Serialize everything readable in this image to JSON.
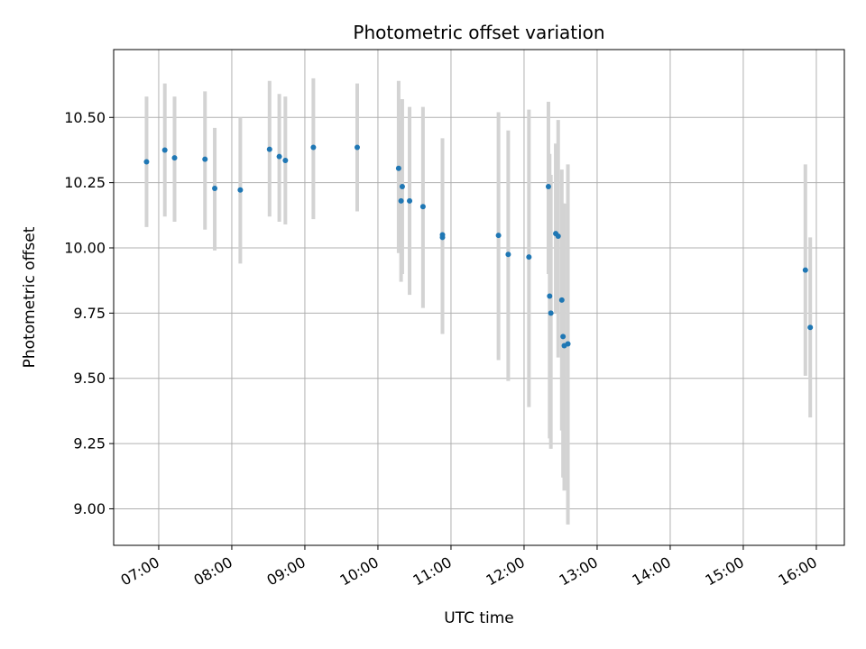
{
  "chart_data": {
    "type": "scatter",
    "title": "Photometric offset variation",
    "xlabel": "UTC time",
    "ylabel": "Photometric offset",
    "x_ticks": [
      "07:00",
      "08:00",
      "09:00",
      "10:00",
      "11:00",
      "12:00",
      "13:00",
      "14:00",
      "15:00",
      "16:00"
    ],
    "y_ticks": [
      "9.00",
      "9.25",
      "9.50",
      "9.75",
      "10.00",
      "10.25",
      "10.50"
    ],
    "xlim": [
      "06:23",
      "16:23"
    ],
    "ylim": [
      8.86,
      10.76
    ],
    "grid": true,
    "colors": {
      "points": "#1f77b4",
      "error_bars": "#d3d3d3",
      "grid": "#b0b0b0"
    },
    "points": [
      {
        "t": "06:50",
        "y": 10.33,
        "lo": 10.08,
        "hi": 10.58
      },
      {
        "t": "07:05",
        "y": 10.375,
        "lo": 10.12,
        "hi": 10.63
      },
      {
        "t": "07:13",
        "y": 10.345,
        "lo": 10.1,
        "hi": 10.58
      },
      {
        "t": "07:38",
        "y": 10.34,
        "lo": 10.07,
        "hi": 10.6
      },
      {
        "t": "07:46",
        "y": 10.228,
        "lo": 9.99,
        "hi": 10.46
      },
      {
        "t": "08:07",
        "y": 10.222,
        "lo": 9.94,
        "hi": 10.5
      },
      {
        "t": "08:31",
        "y": 10.378,
        "lo": 10.12,
        "hi": 10.64
      },
      {
        "t": "08:39",
        "y": 10.35,
        "lo": 10.1,
        "hi": 10.59
      },
      {
        "t": "08:44",
        "y": 10.335,
        "lo": 10.09,
        "hi": 10.58
      },
      {
        "t": "09:07",
        "y": 10.385,
        "lo": 10.11,
        "hi": 10.65
      },
      {
        "t": "09:43",
        "y": 10.385,
        "lo": 10.14,
        "hi": 10.63
      },
      {
        "t": "10:17",
        "y": 10.305,
        "lo": 9.98,
        "hi": 10.64
      },
      {
        "t": "10:19",
        "y": 10.18,
        "lo": 9.87,
        "hi": 10.49
      },
      {
        "t": "10:20",
        "y": 10.235,
        "lo": 9.9,
        "hi": 10.57
      },
      {
        "t": "10:26",
        "y": 10.18,
        "lo": 9.82,
        "hi": 10.54
      },
      {
        "t": "10:37",
        "y": 10.158,
        "lo": 9.77,
        "hi": 10.54
      },
      {
        "t": "10:53",
        "y": 10.05,
        "lo": 9.67,
        "hi": 10.42
      },
      {
        "t": "10:53",
        "y": 10.04,
        "lo": 9.7,
        "hi": 10.4
      },
      {
        "t": "11:39",
        "y": 10.048,
        "lo": 9.57,
        "hi": 10.52
      },
      {
        "t": "11:47",
        "y": 9.975,
        "lo": 9.49,
        "hi": 10.45
      },
      {
        "t": "12:04",
        "y": 9.965,
        "lo": 9.39,
        "hi": 10.53
      },
      {
        "t": "12:20",
        "y": 10.235,
        "lo": 9.9,
        "hi": 10.56
      },
      {
        "t": "12:21",
        "y": 9.815,
        "lo": 9.27,
        "hi": 10.36
      },
      {
        "t": "12:22",
        "y": 9.75,
        "lo": 9.23,
        "hi": 10.28
      },
      {
        "t": "12:26",
        "y": 10.055,
        "lo": 9.75,
        "hi": 10.4
      },
      {
        "t": "12:28",
        "y": 10.045,
        "lo": 9.58,
        "hi": 10.49
      },
      {
        "t": "12:31",
        "y": 9.8,
        "lo": 9.3,
        "hi": 10.3
      },
      {
        "t": "12:32",
        "y": 9.66,
        "lo": 9.12,
        "hi": 10.17
      },
      {
        "t": "12:33",
        "y": 9.625,
        "lo": 9.07,
        "hi": 10.17
      },
      {
        "t": "12:36",
        "y": 9.632,
        "lo": 8.94,
        "hi": 10.32
      },
      {
        "t": "15:51",
        "y": 9.915,
        "lo": 9.51,
        "hi": 10.32
      },
      {
        "t": "15:55",
        "y": 9.695,
        "lo": 9.35,
        "hi": 10.04
      }
    ]
  }
}
